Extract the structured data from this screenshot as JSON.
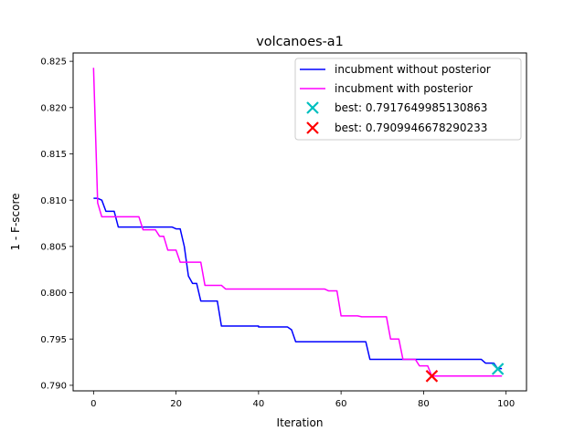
{
  "chart_data": {
    "type": "line",
    "title": "volcanoes-a1",
    "xlabel": "Iteration",
    "ylabel": "1 - F-score",
    "xlim": [
      -4.95,
      104.95
    ],
    "ylim": [
      0.7894,
      0.8259
    ],
    "xticks": [
      0,
      20,
      40,
      60,
      80,
      100
    ],
    "yticks": [
      0.79,
      0.795,
      0.8,
      0.805,
      0.81,
      0.815,
      0.82,
      0.825
    ],
    "ytick_labels": [
      "0.790",
      "0.795",
      "0.800",
      "0.805",
      "0.810",
      "0.815",
      "0.820",
      "0.825"
    ],
    "legend_position": "top-right",
    "grid": false,
    "series": [
      {
        "name": "incubment without posterior",
        "color": "#0000ff",
        "points": [
          [
            0,
            0.8102
          ],
          [
            1,
            0.8102
          ],
          [
            2,
            0.81
          ],
          [
            3,
            0.8088
          ],
          [
            5,
            0.8088
          ],
          [
            6,
            0.8071
          ],
          [
            19,
            0.8071
          ],
          [
            20,
            0.8069
          ],
          [
            21,
            0.8069
          ],
          [
            22,
            0.805
          ],
          [
            23,
            0.8018
          ],
          [
            24,
            0.801
          ],
          [
            25,
            0.801
          ],
          [
            26,
            0.7991
          ],
          [
            30,
            0.7991
          ],
          [
            31,
            0.7964
          ],
          [
            40,
            0.7964
          ],
          [
            40,
            0.7963
          ],
          [
            47,
            0.7963
          ],
          [
            48,
            0.796
          ],
          [
            49,
            0.7947
          ],
          [
            66,
            0.7947
          ],
          [
            67,
            0.7928
          ],
          [
            94,
            0.7928
          ],
          [
            95,
            0.7924
          ],
          [
            97,
            0.7924
          ],
          [
            98,
            0.7918
          ],
          [
            99,
            0.7918
          ]
        ]
      },
      {
        "name": "incubment with posterior",
        "color": "#ff00ff",
        "points": [
          [
            0,
            0.8243
          ],
          [
            1,
            0.8097
          ],
          [
            2,
            0.8082
          ],
          [
            11,
            0.8082
          ],
          [
            12,
            0.8068
          ],
          [
            15,
            0.8068
          ],
          [
            16,
            0.8061
          ],
          [
            17,
            0.8061
          ],
          [
            18,
            0.8046
          ],
          [
            20,
            0.8046
          ],
          [
            21,
            0.8033
          ],
          [
            26,
            0.8033
          ],
          [
            27,
            0.8008
          ],
          [
            31,
            0.8008
          ],
          [
            32,
            0.8004
          ],
          [
            56,
            0.8004
          ],
          [
            57,
            0.8002
          ],
          [
            59,
            0.8002
          ],
          [
            60,
            0.7975
          ],
          [
            64,
            0.7975
          ],
          [
            65,
            0.7974
          ],
          [
            71,
            0.7974
          ],
          [
            72,
            0.795
          ],
          [
            74,
            0.795
          ],
          [
            75,
            0.7928
          ],
          [
            78,
            0.7928
          ],
          [
            79,
            0.7921
          ],
          [
            81,
            0.7921
          ],
          [
            82,
            0.791
          ],
          [
            99,
            0.791
          ]
        ]
      }
    ],
    "markers": [
      {
        "name": "best: 0.7917649985130863",
        "color": "#00bfbf",
        "x": 98,
        "y": 0.7917649985130863
      },
      {
        "name": "best: 0.7909946678290233",
        "color": "#ff0000",
        "x": 82,
        "y": 0.7909946678290233
      }
    ]
  }
}
